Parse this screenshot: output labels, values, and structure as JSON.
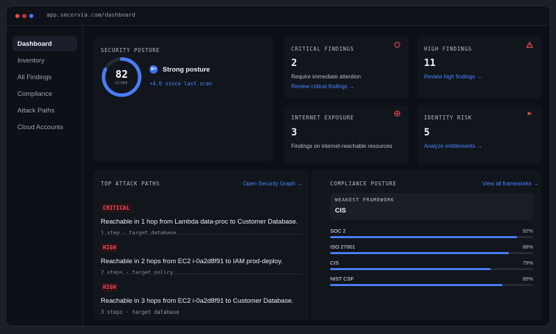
{
  "window": {
    "url": "app.secorvia.com/dashboard"
  },
  "sidebar": {
    "items": [
      {
        "label": "Dashboard",
        "active": true
      },
      {
        "label": "Inventory"
      },
      {
        "label": "All Findings"
      },
      {
        "label": "Compliance"
      },
      {
        "label": "Attack Paths"
      },
      {
        "label": "Cloud Accounts"
      }
    ]
  },
  "posture": {
    "label": "Security Posture",
    "score": "82",
    "score_label": "SCORE",
    "score_value": 0.82,
    "grade": "B+",
    "status": "Strong posture",
    "delta": "+4.0 since last scan"
  },
  "cards": {
    "critical": {
      "label": "Critical Findings",
      "value": "2",
      "sub": "Require immediate attention",
      "link": "Review critical findings →",
      "icon": "shield-alert-icon"
    },
    "high": {
      "label": "High Findings",
      "value": "11",
      "link": "Review high findings →",
      "icon": "warning-triangle-icon"
    },
    "exposure": {
      "label": "Internet Exposure",
      "value": "3",
      "sub": "Findings on internet-reachable resources",
      "icon": "globe-icon"
    },
    "identity": {
      "label": "Identity Risk",
      "value": "5",
      "link": "Analyze entitlements →",
      "icon": "flag-icon"
    }
  },
  "attack_paths": {
    "label": "Top Attack Paths",
    "link": "Open Security Graph →",
    "items": [
      {
        "severity": "CRITICAL",
        "title": "Reachable in 1 hop from Lambda data-proc to Customer Database.",
        "meta": "1 step · target database"
      },
      {
        "severity": "HIGH",
        "title": "Reachable in 2 hops from EC2 i-0a2d8f91 to IAM prod-deploy.",
        "meta": "2 steps · target policy"
      },
      {
        "severity": "HIGH",
        "title": "Reachable in 3 hops from EC2 i-0a2d8f91 to Customer Database.",
        "meta": "3 steps · target database"
      }
    ]
  },
  "compliance": {
    "label": "Compliance Posture",
    "link": "View all frameworks →",
    "weakest_label": "Weakest Framework",
    "weakest_value": "CIS",
    "frameworks": [
      {
        "name": "SOC 2",
        "pct": "92%",
        "value": 0.92
      },
      {
        "name": "ISO 27001",
        "pct": "88%",
        "value": 0.88
      },
      {
        "name": "CIS",
        "pct": "79%",
        "value": 0.79
      },
      {
        "name": "NIST CSF",
        "pct": "85%",
        "value": 0.85
      }
    ]
  },
  "colors": {
    "accent": "#4a86ff",
    "danger": "#e5484d",
    "bar": "#4a7df5"
  }
}
